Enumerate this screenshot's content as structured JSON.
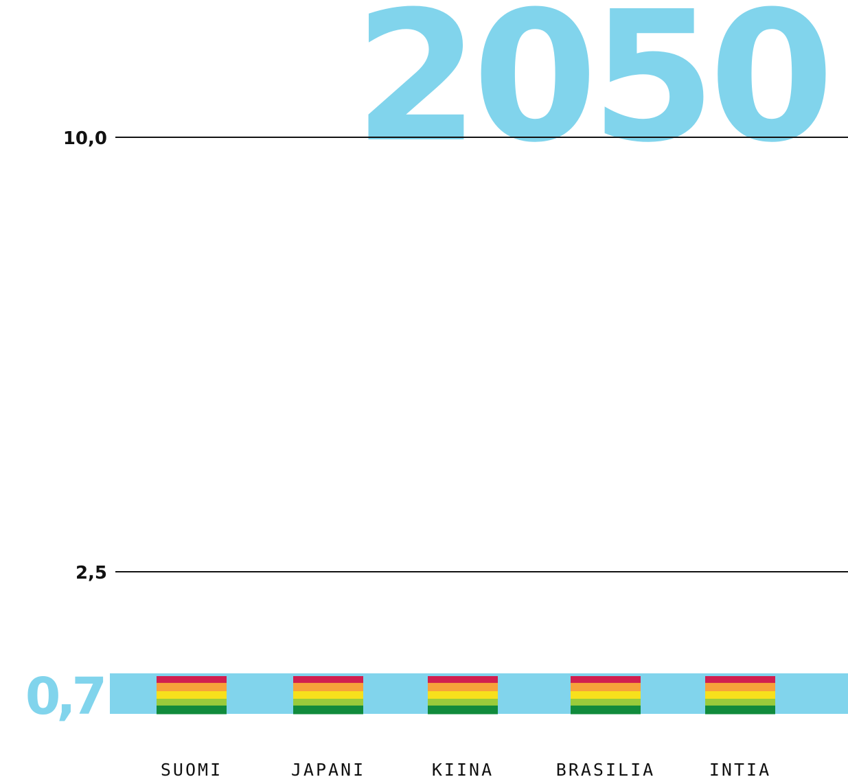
{
  "colors": {
    "accent": "#81d4ec",
    "text": "#111111",
    "gridline": "#111111",
    "stack": [
      "#d11f4f",
      "#f7a23a",
      "#f7e01c",
      "#9acb3b",
      "#118b3c"
    ]
  },
  "chart_data": {
    "type": "bar",
    "title": "2050",
    "xlabel": "",
    "ylabel": "",
    "ylim": [
      0,
      10
    ],
    "grid": true,
    "reference_lines": [
      {
        "value": 10.0,
        "label": "10,0"
      },
      {
        "value": 2.5,
        "label": "2,5"
      }
    ],
    "band": {
      "value": 0.7,
      "label": "0,7"
    },
    "categories": [
      "SUOMI",
      "JAPANI",
      "KIINA",
      "BRASILIA",
      "INTIA"
    ],
    "values": [
      0.7,
      0.7,
      0.7,
      0.7,
      0.7
    ]
  }
}
